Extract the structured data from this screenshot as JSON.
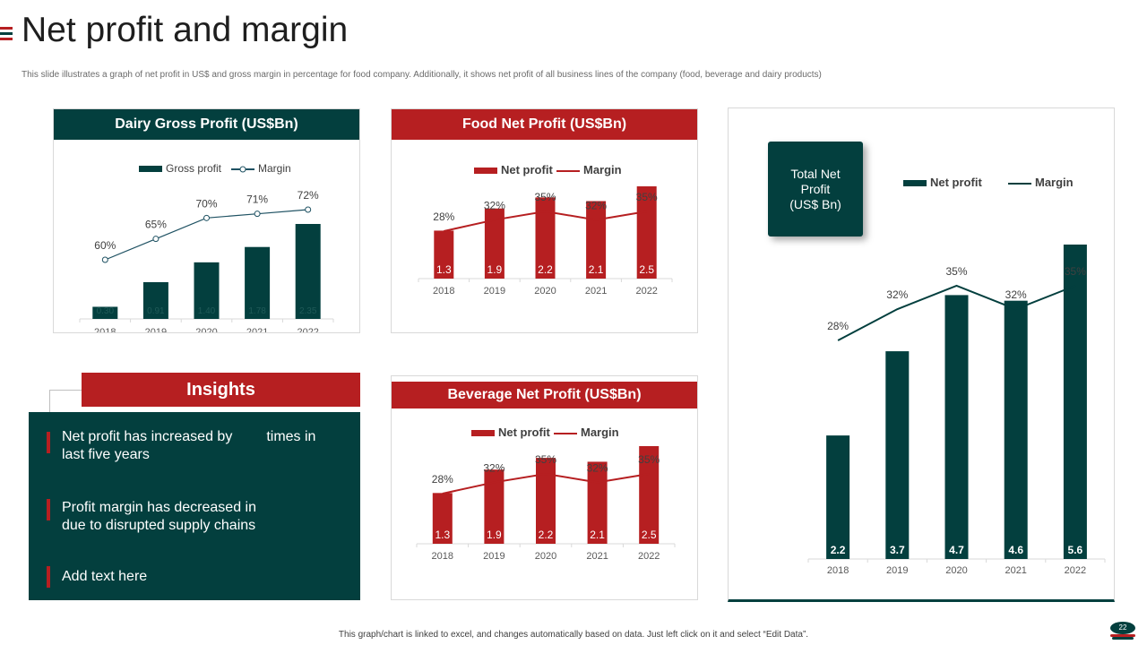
{
  "page": {
    "title": "Net profit and margin",
    "subtitle": "This slide illustrates a graph of net profit in US$ and gross margin in percentage for food company. Additionally, it shows net profit of all business lines of the company (food, beverage and dairy products)",
    "footer": "This graph/chart is linked to excel, and changes automatically based on data. Just left click on it and select “Edit Data”.",
    "page_number": "22",
    "accent_colors": [
      "#b61f21",
      "#033f3e",
      "#b61f21"
    ]
  },
  "colors": {
    "teal": "#033f3e",
    "red": "#b61f21"
  },
  "insights": {
    "title": "Insights",
    "items": [
      {
        "before": "Net profit has increased by",
        "after": "times in last five years"
      },
      {
        "before": "Profit margin has decreased in",
        "after": "due to disrupted supply chains"
      },
      {
        "before": "Add text here",
        "after": ""
      }
    ]
  },
  "total_card": {
    "label": "Total Net\nProfit\n(US$ Bn)"
  },
  "chart_data": [
    {
      "type": "bar",
      "title": "Dairy Gross Profit (US$Bn)",
      "categories": [
        "2018",
        "2019",
        "2020",
        "2021",
        "2022"
      ],
      "series": [
        {
          "name": "Gross profit",
          "type": "bar",
          "values": [
            0.3,
            0.91,
            1.4,
            1.78,
            2.35
          ],
          "labels": [
            "0.30",
            "0.91",
            "1.40",
            "1.78",
            "2.35"
          ]
        },
        {
          "name": "Margin",
          "type": "line",
          "values": [
            60,
            65,
            70,
            71,
            72
          ],
          "labels": [
            "60%",
            "65%",
            "70%",
            "71%",
            "72%"
          ]
        }
      ],
      "legend": "top",
      "color": "#033f3e"
    },
    {
      "type": "bar",
      "title": "Food Net Profit (US$Bn)",
      "categories": [
        "2018",
        "2019",
        "2020",
        "2021",
        "2022"
      ],
      "series": [
        {
          "name": "Net profit",
          "type": "bar",
          "values": [
            1.3,
            1.9,
            2.2,
            2.1,
            2.5
          ],
          "labels": [
            "1.3",
            "1.9",
            "2.2",
            "2.1",
            "2.5"
          ]
        },
        {
          "name": "Margin",
          "type": "line",
          "values": [
            28,
            32,
            35,
            32,
            35
          ],
          "labels": [
            "28%",
            "32%",
            "35%",
            "32%",
            "35%"
          ]
        }
      ],
      "legend": "top",
      "color": "#b61f21"
    },
    {
      "type": "bar",
      "title": "Beverage Net Profit (US$Bn)",
      "categories": [
        "2018",
        "2019",
        "2020",
        "2021",
        "2022"
      ],
      "series": [
        {
          "name": "Net profit",
          "type": "bar",
          "values": [
            1.3,
            1.9,
            2.2,
            2.1,
            2.5
          ],
          "labels": [
            "1.3",
            "1.9",
            "2.2",
            "2.1",
            "2.5"
          ]
        },
        {
          "name": "Margin",
          "type": "line",
          "values": [
            28,
            32,
            35,
            32,
            35
          ],
          "labels": [
            "28%",
            "32%",
            "35%",
            "32%",
            "35%"
          ]
        }
      ],
      "legend": "top",
      "color": "#b61f21"
    },
    {
      "type": "bar",
      "title": "",
      "categories": [
        "2018",
        "2019",
        "2020",
        "2021",
        "2022"
      ],
      "series": [
        {
          "name": "Net profit",
          "type": "bar",
          "values": [
            2.2,
            3.7,
            4.7,
            4.6,
            5.6
          ],
          "labels": [
            "2.2",
            "3.7",
            "4.7",
            "4.6",
            "5.6"
          ]
        },
        {
          "name": "Margin",
          "type": "line",
          "values": [
            28,
            32,
            35,
            32,
            35
          ],
          "labels": [
            "28%",
            "32%",
            "35%",
            "32%",
            "35%"
          ]
        }
      ],
      "legend": "top",
      "color": "#033f3e"
    }
  ]
}
